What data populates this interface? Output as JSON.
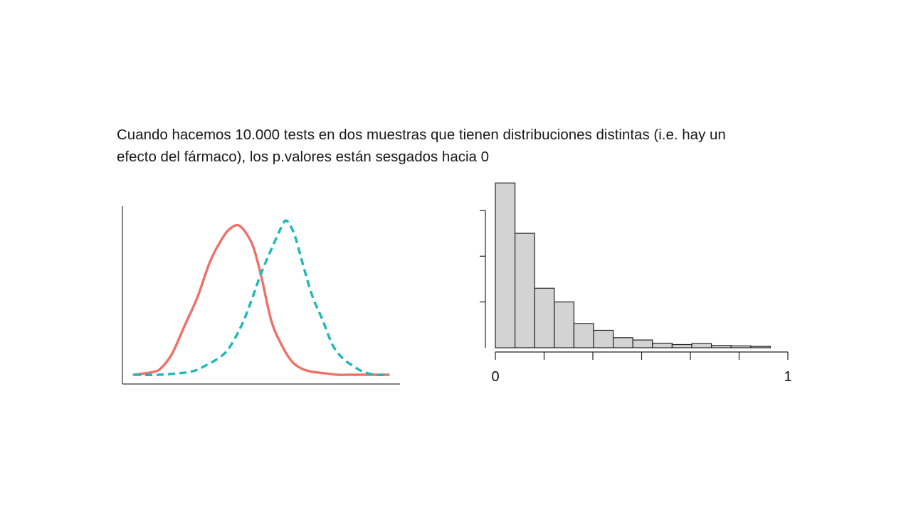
{
  "caption": {
    "line1": "Cuando hacemos 10.000 tests en dos muestras que tienen distribuciones distintas (i.e. hay un",
    "line2": "efecto del fármaco), los p.valores están sesgados hacia 0"
  },
  "colors": {
    "series_a": "#ef7068",
    "series_b": "#1fb8b8",
    "bar_fill": "#d3d3d3",
    "bar_stroke": "#222222"
  },
  "chart_data": [
    {
      "type": "line",
      "title": "",
      "xlabel": "",
      "ylabel": "",
      "xlim": [
        0,
        1
      ],
      "ylim": [
        0,
        1.08
      ],
      "series": [
        {
          "style": "solid",
          "x": [
            0.0,
            0.08,
            0.11,
            0.15,
            0.2,
            0.25,
            0.3,
            0.35,
            0.38,
            0.41,
            0.44,
            0.47,
            0.5,
            0.54,
            0.58,
            0.62,
            0.66,
            0.7,
            0.75,
            0.8,
            0.85,
            0.9,
            0.95,
            1.0
          ],
          "y": [
            0.0,
            0.02,
            0.05,
            0.14,
            0.33,
            0.52,
            0.76,
            0.92,
            0.98,
            1.0,
            0.95,
            0.85,
            0.66,
            0.36,
            0.2,
            0.09,
            0.04,
            0.02,
            0.01,
            0.0,
            0.0,
            0.0,
            0.0,
            0.0
          ]
        },
        {
          "style": "dashed",
          "x": [
            0.0,
            0.1,
            0.22,
            0.28,
            0.36,
            0.42,
            0.46,
            0.5,
            0.54,
            0.58,
            0.6,
            0.63,
            0.66,
            0.7,
            0.74,
            0.78,
            0.82,
            0.86,
            0.9,
            0.95,
            1.0
          ],
          "y": [
            0.0,
            0.0,
            0.02,
            0.06,
            0.15,
            0.32,
            0.49,
            0.68,
            0.84,
            0.99,
            1.03,
            0.94,
            0.76,
            0.53,
            0.37,
            0.2,
            0.11,
            0.06,
            0.02,
            0.0,
            0.0
          ]
        }
      ]
    },
    {
      "type": "bar",
      "title": "",
      "xlabel": "",
      "ylabel": "",
      "xlim": [
        0,
        1
      ],
      "ylim": [
        0,
        0.32
      ],
      "bin_width": 0.0667,
      "values": [
        0.36,
        0.25,
        0.13,
        0.1,
        0.053,
        0.038,
        0.022,
        0.017,
        0.01,
        0.007,
        0.009,
        0.005,
        0.004,
        0.003
      ],
      "x_ticks": [
        0,
        0.1667,
        0.3333,
        0.5,
        0.6667,
        0.8333,
        1
      ],
      "x_tick_labels": [
        "0",
        "1"
      ],
      "y_ticks": [
        0.1,
        0.2,
        0.3
      ]
    }
  ]
}
